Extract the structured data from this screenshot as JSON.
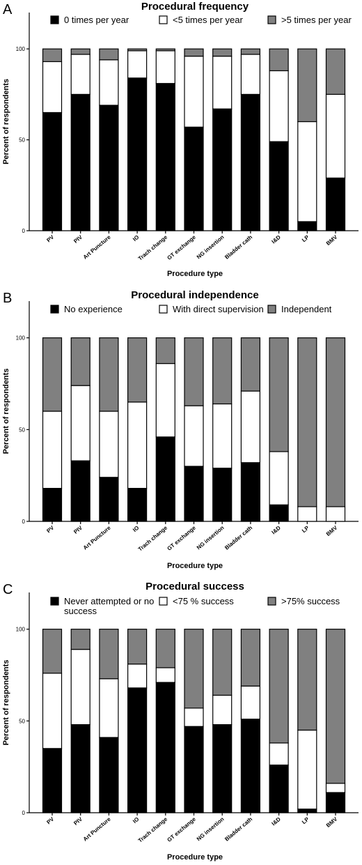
{
  "chart_data": [
    {
      "type": "bar",
      "stacked": true,
      "panel_label": "A",
      "title": "Procedural frequency",
      "xlabel": "Procedure type",
      "ylabel": "Percent of respondents",
      "ylim": [
        0,
        120
      ],
      "yticks": [
        0,
        50,
        100
      ],
      "legend_position": "top",
      "categories": [
        "PV",
        "PIV",
        "Art Puncture",
        "IO",
        "Trach change",
        "GT exchange",
        "NG insertion",
        "Bladder cath",
        "I&D",
        "LP",
        "BMV"
      ],
      "series": [
        {
          "name": "0 times per year",
          "color": "#000000",
          "values": [
            65,
            75,
            69,
            84,
            81,
            57,
            67,
            75,
            49,
            5,
            29
          ]
        },
        {
          "name": "<5 times per year",
          "color": "#ffffff",
          "values": [
            28,
            22,
            25,
            15,
            18,
            39,
            29,
            22,
            39,
            55,
            46
          ]
        },
        {
          "name": ">5 times per year",
          "color": "#808080",
          "values": [
            7,
            3,
            6,
            1,
            1,
            4,
            4,
            3,
            12,
            40,
            25
          ]
        }
      ]
    },
    {
      "type": "bar",
      "stacked": true,
      "panel_label": "B",
      "title": "Procedural independence",
      "xlabel": "Procedure type",
      "ylabel": "Percent of respondents",
      "ylim": [
        0,
        120
      ],
      "yticks": [
        0,
        50,
        100
      ],
      "legend_position": "top",
      "categories": [
        "PV",
        "PIV",
        "Art Puncture",
        "IO",
        "Trach change",
        "GT exchange",
        "NG insertion",
        "Bladder cath",
        "I&D",
        "LP",
        "BMV"
      ],
      "series": [
        {
          "name": "No experience",
          "color": "#000000",
          "values": [
            18,
            33,
            24,
            18,
            46,
            30,
            29,
            32,
            9,
            0,
            0
          ]
        },
        {
          "name": "With direct supervision",
          "color": "#ffffff",
          "values": [
            42,
            41,
            36,
            47,
            40,
            33,
            35,
            39,
            29,
            8,
            8
          ]
        },
        {
          "name": "Independent",
          "color": "#808080",
          "values": [
            40,
            26,
            40,
            35,
            14,
            37,
            36,
            29,
            62,
            92,
            92
          ]
        }
      ]
    },
    {
      "type": "bar",
      "stacked": true,
      "panel_label": "C",
      "title": "Procedural success",
      "xlabel": "Procedure type",
      "ylabel": "Percent of respondents",
      "ylim": [
        0,
        120
      ],
      "yticks": [
        0,
        50,
        100
      ],
      "legend_position": "top",
      "categories": [
        "PV",
        "PIV",
        "Art Puncture",
        "IO",
        "Trach change",
        "GT exchange",
        "NG insertion",
        "Bladder cath",
        "I&D",
        "LP",
        "BMV"
      ],
      "series": [
        {
          "name": "Never attempted or no success",
          "color": "#000000",
          "values": [
            35,
            48,
            41,
            68,
            71,
            47,
            48,
            51,
            26,
            2,
            11
          ]
        },
        {
          "name": "<75 % success",
          "color": "#ffffff",
          "values": [
            41,
            41,
            32,
            13,
            8,
            10,
            16,
            18,
            12,
            43,
            5
          ]
        },
        {
          "name": ">75% success",
          "color": "#808080",
          "values": [
            24,
            11,
            27,
            19,
            21,
            43,
            36,
            31,
            62,
            55,
            84
          ]
        }
      ]
    }
  ]
}
